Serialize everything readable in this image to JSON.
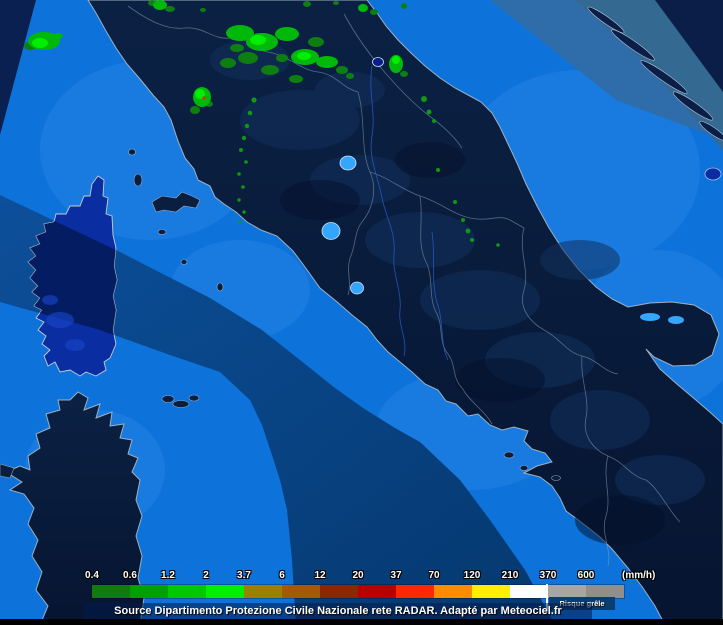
{
  "map": {
    "description": "weather-radar-map-central-italy",
    "sea_color": "#0d72da",
    "land_color": "#0a1e40",
    "shadow_sector_color": "#05386e",
    "echo_color_green": "#00ef00",
    "lake_color": "#35a6ff"
  },
  "legend": {
    "unit_label": "(mm/h)",
    "ticks": [
      "0.4",
      "0.6",
      "1.2",
      "2",
      "3.7",
      "6",
      "12",
      "20",
      "37",
      "70",
      "120",
      "210",
      "370",
      "600"
    ],
    "segment_colors": [
      "#117a11",
      "#00a000",
      "#00c800",
      "#00ee00",
      "#9a8200",
      "#a25b00",
      "#8c2800",
      "#b80000",
      "#ff2800",
      "#ff8c00",
      "#ffee00",
      "#ffffff",
      "#a6a6a6",
      "#8f8f8f"
    ],
    "hail_label": "Risque grêle"
  },
  "attribution": {
    "text": "Source Dipartimento Protezione Civile Nazionale rete RADAR. Adapté par Meteociel.fr"
  }
}
